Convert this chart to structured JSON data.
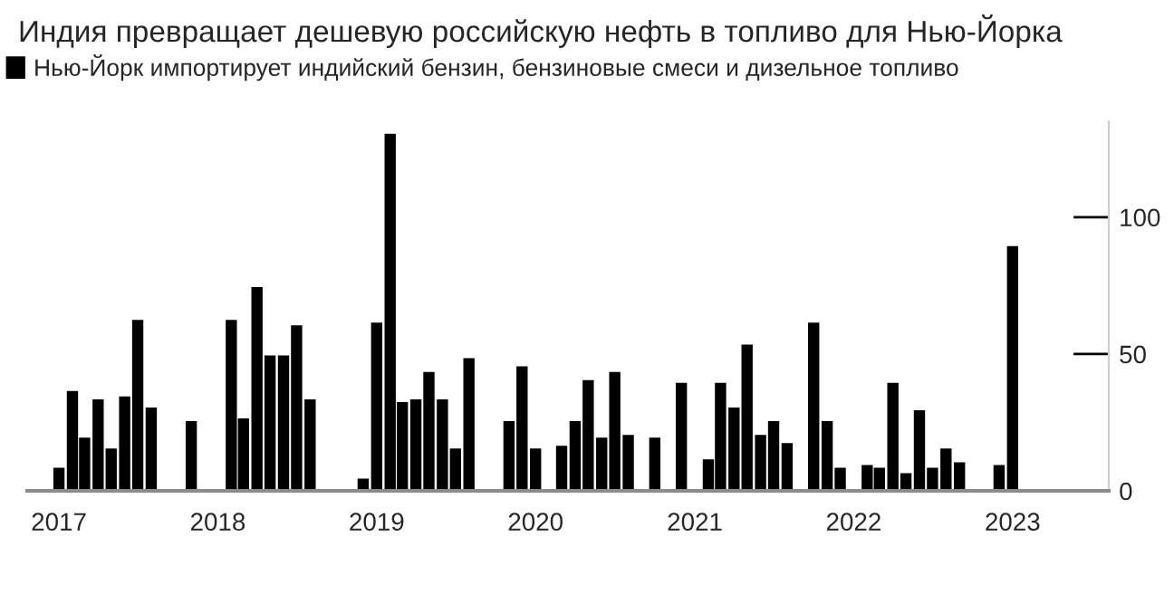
{
  "chart_data": {
    "type": "bar",
    "title": "Индия превращает дешевую российскую нефть в топливо для Нью-Йорка",
    "x": [
      "2017-01",
      "2017-02",
      "2017-03",
      "2017-04",
      "2017-05",
      "2017-06",
      "2017-07",
      "2017-08",
      "2017-09",
      "2017-10",
      "2017-11",
      "2017-12",
      "2018-01",
      "2018-02",
      "2018-03",
      "2018-04",
      "2018-05",
      "2018-06",
      "2018-07",
      "2018-08",
      "2018-09",
      "2018-10",
      "2018-11",
      "2018-12",
      "2019-01",
      "2019-02",
      "2019-03",
      "2019-04",
      "2019-05",
      "2019-06",
      "2019-07",
      "2019-08",
      "2019-09",
      "2019-10",
      "2019-11",
      "2019-12",
      "2020-01",
      "2020-02",
      "2020-03",
      "2020-04",
      "2020-05",
      "2020-06",
      "2020-07",
      "2020-08",
      "2020-09",
      "2020-10",
      "2020-11",
      "2020-12",
      "2021-01",
      "2021-02",
      "2021-03",
      "2021-04",
      "2021-05",
      "2021-06",
      "2021-07",
      "2021-08",
      "2021-09",
      "2021-10",
      "2021-11",
      "2021-12",
      "2022-01",
      "2022-02",
      "2022-03",
      "2022-04",
      "2022-05",
      "2022-06",
      "2022-07",
      "2022-08",
      "2022-09",
      "2022-10",
      "2022-11",
      "2022-12",
      "2023-01"
    ],
    "series": [
      {
        "name": "Нью-Йорк импортирует индийский бензин, бензиновые смеси и дизельное топливо",
        "color": "#000000",
        "values": [
          8,
          36,
          19,
          33,
          15,
          34,
          62,
          30,
          0,
          0,
          25,
          0,
          0,
          62,
          26,
          74,
          49,
          49,
          60,
          33,
          0,
          0,
          0,
          4,
          61,
          130,
          32,
          33,
          43,
          33,
          15,
          48,
          0,
          0,
          25,
          45,
          15,
          0,
          16,
          25,
          40,
          19,
          43,
          20,
          0,
          19,
          0,
          39,
          0,
          11,
          39,
          30,
          53,
          20,
          25,
          17,
          0,
          61,
          25,
          8,
          0,
          9,
          8,
          39,
          6,
          29,
          8,
          15,
          10,
          0,
          0,
          9,
          89
        ]
      }
    ],
    "xlim": [
      "2016-10-20",
      "2023-08-10"
    ],
    "xticks": [
      {
        "value": "2017-01-01",
        "label": "2017"
      },
      {
        "value": "2018-01-01",
        "label": "2018"
      },
      {
        "value": "2019-01-01",
        "label": "2019"
      },
      {
        "value": "2020-01-01",
        "label": "2020"
      },
      {
        "value": "2021-01-01",
        "label": "2021"
      },
      {
        "value": "2022-01-01",
        "label": "2022"
      },
      {
        "value": "2023-01-01",
        "label": "2023"
      }
    ],
    "ylim": [
      0,
      135
    ],
    "yticks": [
      0,
      50,
      100
    ],
    "legend": "top left"
  }
}
